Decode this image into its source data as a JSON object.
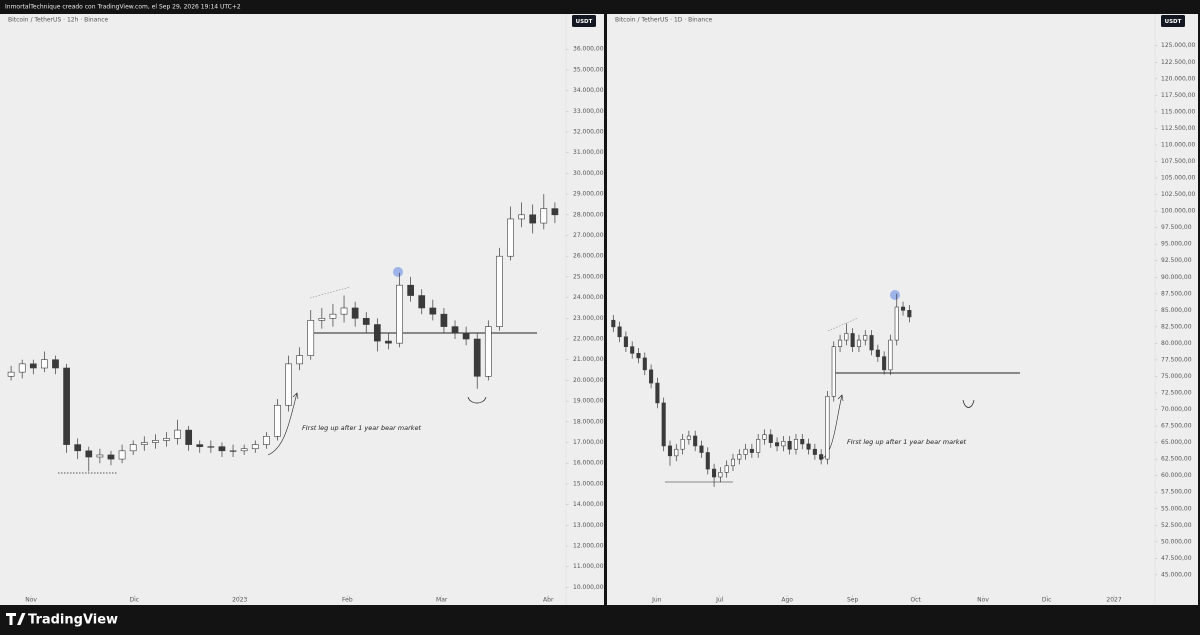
{
  "header": {
    "author_line": "InmortalTechnique creado con TradingView.com, el Sep 29, 2026 19:14 UTC+2"
  },
  "footer": {
    "brand": "TradingView"
  },
  "chart_data": [
    {
      "type": "candlestick",
      "title": "Bitcoin / TetherUS · 12h · Binance",
      "currency_label": "USDT",
      "annotation": "FIrst leg up after 1 year bear market",
      "up_color": "#ffffff",
      "down_color": "#3a3a3a",
      "wick_color": "#3a3a3a",
      "grid": false,
      "ylim": [
        9200,
        37700
      ],
      "yticks": [
        {
          "value": 36000,
          "label": "36.000,00"
        },
        {
          "value": 35000,
          "label": "35.000,00"
        },
        {
          "value": 34000,
          "label": "34.000,00"
        },
        {
          "value": 33000,
          "label": "33.000,00"
        },
        {
          "value": 32000,
          "label": "32.000,00"
        },
        {
          "value": 31000,
          "label": "31.000,00"
        },
        {
          "value": 30000,
          "label": "30.000,00"
        },
        {
          "value": 29000,
          "label": "29.000,00"
        },
        {
          "value": 28000,
          "label": "28.000,00"
        },
        {
          "value": 27000,
          "label": "27.000,00"
        },
        {
          "value": 26000,
          "label": "26.000,00"
        },
        {
          "value": 25000,
          "label": "25.000,00"
        },
        {
          "value": 24000,
          "label": "24.000,00"
        },
        {
          "value": 23000,
          "label": "23.000,00"
        },
        {
          "value": 22000,
          "label": "22.000,00"
        },
        {
          "value": 21000,
          "label": "21.000,00"
        },
        {
          "value": 20000,
          "label": "20.000,00"
        },
        {
          "value": 19000,
          "label": "19.000,00"
        },
        {
          "value": 18000,
          "label": "18.000,00"
        },
        {
          "value": 17000,
          "label": "17.000,00"
        },
        {
          "value": 16000,
          "label": "16.000,00"
        },
        {
          "value": 15000,
          "label": "15.000,00"
        },
        {
          "value": 14000,
          "label": "14.000,00"
        },
        {
          "value": 13000,
          "label": "13.000,00"
        },
        {
          "value": 12000,
          "label": "12.000,00"
        },
        {
          "value": 11000,
          "label": "11.000,00"
        },
        {
          "value": 10000,
          "label": "10.000,00"
        }
      ],
      "xlim": [
        -1,
        50
      ],
      "xticks": [
        {
          "value": 1.8,
          "label": "Nov"
        },
        {
          "value": 11.1,
          "label": "Dic"
        },
        {
          "value": 20.6,
          "label": "2023"
        },
        {
          "value": 30.3,
          "label": "Feb"
        },
        {
          "value": 38.8,
          "label": "Mar"
        },
        {
          "value": 48.4,
          "label": "Abr"
        }
      ],
      "open": [
        20200,
        20400,
        20800,
        20600,
        21000,
        20600,
        16900,
        16600,
        16300,
        16400,
        16200,
        16600,
        16900,
        17000,
        17100,
        17200,
        17600,
        16900,
        16800,
        16800,
        16600,
        16600,
        16700,
        16900,
        17300,
        18800,
        20800,
        21200,
        22900,
        23000,
        23200,
        23500,
        23000,
        22700,
        21900,
        21800,
        24600,
        24100,
        23500,
        23200,
        22600,
        22300,
        22000,
        20200,
        22600,
        26000,
        27800,
        28000,
        27600,
        28300
      ],
      "high": [
        20700,
        21000,
        21000,
        21400,
        21200,
        20800,
        17200,
        16800,
        16700,
        16600,
        16900,
        17100,
        17300,
        17400,
        17500,
        18100,
        17800,
        17100,
        17100,
        17000,
        16900,
        16900,
        17100,
        17500,
        19100,
        21200,
        21600,
        23400,
        23500,
        23700,
        24100,
        23800,
        23300,
        23000,
        22300,
        25200,
        25000,
        24400,
        23900,
        23500,
        22900,
        22600,
        22300,
        22900,
        26400,
        28400,
        28600,
        28500,
        29000,
        28600
      ],
      "low": [
        20000,
        20100,
        20300,
        20400,
        20300,
        16500,
        16200,
        15600,
        16000,
        15900,
        16000,
        16400,
        16600,
        16700,
        16800,
        16900,
        16600,
        16500,
        16500,
        16300,
        16300,
        16400,
        16500,
        16700,
        17100,
        18500,
        20500,
        21000,
        22500,
        22600,
        22800,
        22600,
        22300,
        21400,
        21500,
        21600,
        23800,
        23200,
        22900,
        22300,
        22000,
        21700,
        19600,
        20000,
        22400,
        25800,
        27400,
        27100,
        27300,
        27600
      ],
      "close": [
        20400,
        20800,
        20600,
        21000,
        20600,
        16900,
        16600,
        16300,
        16400,
        16200,
        16600,
        16900,
        17000,
        17100,
        17200,
        17600,
        16900,
        16800,
        16800,
        16600,
        16600,
        16700,
        16900,
        17300,
        18800,
        20800,
        21200,
        22900,
        23000,
        23200,
        23500,
        23000,
        22700,
        21900,
        21800,
        24600,
        24100,
        23500,
        23200,
        22600,
        22300,
        22000,
        20200,
        22600,
        26000,
        27800,
        28000,
        27600,
        28300,
        28000
      ]
    },
    {
      "type": "candlestick",
      "title": "Bitcoin / TetherUS · 1D · Binance",
      "currency_label": "USDT",
      "annotation": "FIrst leg up after 1 year bear market",
      "up_color": "#ffffff",
      "down_color": "#3a3a3a",
      "wick_color": "#3a3a3a",
      "grid": false,
      "ylim": [
        40600,
        129800
      ],
      "yticks": [
        {
          "value": 125000,
          "label": "125.000,00"
        },
        {
          "value": 122500,
          "label": "122.500,00"
        },
        {
          "value": 120000,
          "label": "120.000,00"
        },
        {
          "value": 117500,
          "label": "117.500,00"
        },
        {
          "value": 115000,
          "label": "115.000,00"
        },
        {
          "value": 112500,
          "label": "112.500,00"
        },
        {
          "value": 110000,
          "label": "110.000,00"
        },
        {
          "value": 107500,
          "label": "107.500,00"
        },
        {
          "value": 105000,
          "label": "105.000,00"
        },
        {
          "value": 102500,
          "label": "102.500,00"
        },
        {
          "value": 100000,
          "label": "100.000,00"
        },
        {
          "value": 97500,
          "label": "97.500,00"
        },
        {
          "value": 95000,
          "label": "95.000,00"
        },
        {
          "value": 92500,
          "label": "92.500,00"
        },
        {
          "value": 90000,
          "label": "90.000,00"
        },
        {
          "value": 87500,
          "label": "87.500,00"
        },
        {
          "value": 85000,
          "label": "85.000,00"
        },
        {
          "value": 82500,
          "label": "82.500,00"
        },
        {
          "value": 80000,
          "label": "80.000,00"
        },
        {
          "value": 77500,
          "label": "77.500,00"
        },
        {
          "value": 75000,
          "label": "75.000,00"
        },
        {
          "value": 72500,
          "label": "72.500,00"
        },
        {
          "value": 70000,
          "label": "70.000,00"
        },
        {
          "value": 67500,
          "label": "67.500,00"
        },
        {
          "value": 65000,
          "label": "65.000,00"
        },
        {
          "value": 62500,
          "label": "62.500,00"
        },
        {
          "value": 60000,
          "label": "60.000,00"
        },
        {
          "value": 57500,
          "label": "57.500,00"
        },
        {
          "value": 55000,
          "label": "55.000,00"
        },
        {
          "value": 52500,
          "label": "52.500,00"
        },
        {
          "value": 50000,
          "label": "50.000,00"
        },
        {
          "value": 47500,
          "label": "47.500,00"
        },
        {
          "value": 45000,
          "label": "45.000,00"
        }
      ],
      "xlim": [
        -1,
        86
      ],
      "xticks": [
        {
          "value": 6.9,
          "label": "Jun"
        },
        {
          "value": 16.9,
          "label": "Jul"
        },
        {
          "value": 27.6,
          "label": "Ago"
        },
        {
          "value": 38.0,
          "label": "Sep"
        },
        {
          "value": 48.0,
          "label": "Oct"
        },
        {
          "value": 58.7,
          "label": "Nov"
        },
        {
          "value": 68.8,
          "label": "Dic"
        },
        {
          "value": 79.5,
          "label": "2027"
        }
      ],
      "open": [
        83500,
        82500,
        81000,
        79500,
        78500,
        77800,
        76000,
        74000,
        71000,
        64500,
        63000,
        64000,
        65500,
        66000,
        64500,
        63500,
        61000,
        59800,
        60500,
        61500,
        62500,
        63200,
        64000,
        63500,
        65500,
        66200,
        65000,
        64500,
        65200,
        64000,
        65500,
        64800,
        64000,
        63200,
        62500,
        72000,
        79500,
        80500,
        81500,
        79500,
        80500,
        81200,
        79000,
        78000,
        76000,
        80500,
        85500,
        85000
      ],
      "high": [
        84300,
        83300,
        81800,
        80300,
        79300,
        78600,
        76800,
        74800,
        71800,
        65300,
        64800,
        66300,
        66800,
        66800,
        65300,
        64300,
        61800,
        61300,
        62300,
        63300,
        64000,
        64800,
        64800,
        66300,
        67000,
        67000,
        65800,
        66000,
        66000,
        66300,
        66300,
        65600,
        64800,
        64000,
        72800,
        80300,
        81300,
        83000,
        82300,
        81300,
        82000,
        82000,
        79800,
        78800,
        81300,
        87500,
        86300,
        85800
      ],
      "low": [
        81700,
        80200,
        78700,
        77700,
        77000,
        75200,
        73200,
        70200,
        63700,
        61500,
        62200,
        63200,
        64700,
        63700,
        62700,
        60200,
        58300,
        59000,
        59700,
        60700,
        61700,
        62400,
        62700,
        62700,
        64700,
        64200,
        63700,
        63700,
        63200,
        63200,
        64000,
        63200,
        62400,
        61700,
        61700,
        71200,
        78700,
        79700,
        78700,
        78700,
        79700,
        78200,
        77200,
        75300,
        75200,
        79700,
        84200,
        83200
      ],
      "close": [
        82500,
        81000,
        79500,
        78500,
        77800,
        76000,
        74000,
        71000,
        64500,
        63000,
        64000,
        65500,
        66000,
        64500,
        63500,
        61000,
        59800,
        60500,
        61500,
        62500,
        63200,
        64000,
        63500,
        65500,
        66200,
        65000,
        64500,
        65200,
        64000,
        65500,
        64800,
        64000,
        63200,
        62500,
        72000,
        79500,
        80500,
        81500,
        79500,
        80500,
        81200,
        79000,
        78000,
        76000,
        80500,
        85500,
        85000,
        84000
      ]
    }
  ]
}
